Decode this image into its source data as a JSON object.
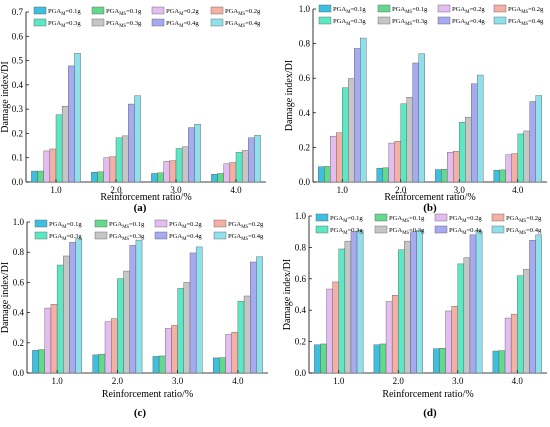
{
  "series_styles": [
    {
      "name": "PGA_M=0.1g",
      "base": "PGA",
      "sub": "M",
      "val": "=0.1g",
      "color": "#3dbfe0"
    },
    {
      "name": "PGA_MS=0.1g",
      "base": "PGA",
      "sub": "MS",
      "val": "=0.1g",
      "color": "#63d98e"
    },
    {
      "name": "PGA_M=0.2g",
      "base": "PGA",
      "sub": "M",
      "val": "=0.2g",
      "color": "#e4bcf0"
    },
    {
      "name": "PGA_MS=0.2g",
      "base": "PGA",
      "sub": "MS",
      "val": "=0.2g",
      "color": "#f4b0a4"
    },
    {
      "name": "PGA_M=0.3g",
      "base": "PGA",
      "sub": "M",
      "val": "=0.3g",
      "color": "#5de8c4"
    },
    {
      "name": "PGA_MS=0.3g",
      "base": "PGA",
      "sub": "MS",
      "val": "=0.3g",
      "color": "#c6c6c6"
    },
    {
      "name": "PGA_M=0.4g",
      "base": "PGA",
      "sub": "M",
      "val": "=0.4g",
      "color": "#a6aaf0"
    },
    {
      "name": "PGA_MS=0.4g",
      "base": "PGA",
      "sub": "MS",
      "val": "=0.4g",
      "color": "#8fe0ea"
    }
  ],
  "chart_data": [
    {
      "type": "bar",
      "panel_label": "(a)",
      "xlabel": "Reinforcement ratio/%",
      "ylabel": "Damage index/DI",
      "categories": [
        "1.0",
        "2.0",
        "3.0",
        "4.0"
      ],
      "ylim": [
        0,
        0.7
      ],
      "yticks": [
        "0.0",
        "0.1",
        "0.2",
        "0.3",
        "0.4",
        "0.5",
        "0.6",
        "0.7"
      ],
      "series": [
        {
          "name": "PGA_M=0.1g",
          "values": [
            0.045,
            0.04,
            0.035,
            0.032
          ]
        },
        {
          "name": "PGA_MS=0.1g",
          "values": [
            0.045,
            0.042,
            0.038,
            0.035
          ]
        },
        {
          "name": "PGA_M=0.2g",
          "values": [
            0.128,
            0.1,
            0.085,
            0.075
          ]
        },
        {
          "name": "PGA_MS=0.2g",
          "values": [
            0.136,
            0.104,
            0.088,
            0.08
          ]
        },
        {
          "name": "PGA_M=0.3g",
          "values": [
            0.277,
            0.182,
            0.138,
            0.122
          ]
        },
        {
          "name": "PGA_MS=0.3g",
          "values": [
            0.312,
            0.19,
            0.145,
            0.13
          ]
        },
        {
          "name": "PGA_M=0.4g",
          "values": [
            0.478,
            0.321,
            0.224,
            0.182
          ]
        },
        {
          "name": "PGA_MS=0.4g",
          "values": [
            0.53,
            0.355,
            0.238,
            0.192
          ]
        }
      ]
    },
    {
      "type": "bar",
      "panel_label": "(b)",
      "xlabel": "Reinforcement ratio/%",
      "ylabel": "Damage index/DI",
      "categories": [
        "1.0",
        "2.0",
        "3.0",
        "4.0"
      ],
      "ylim": [
        0,
        1.0
      ],
      "yticks": [
        "0.0",
        "0.2",
        "0.4",
        "0.6",
        "0.8",
        "1.0"
      ],
      "series": [
        {
          "name": "PGA_M=0.1g",
          "values": [
            0.088,
            0.08,
            0.072,
            0.068
          ]
        },
        {
          "name": "PGA_MS=0.1g",
          "values": [
            0.09,
            0.082,
            0.074,
            0.07
          ]
        },
        {
          "name": "PGA_M=0.2g",
          "values": [
            0.265,
            0.225,
            0.172,
            0.158
          ]
        },
        {
          "name": "PGA_MS=0.2g",
          "values": [
            0.285,
            0.235,
            0.178,
            0.164
          ]
        },
        {
          "name": "PGA_M=0.3g",
          "values": [
            0.545,
            0.452,
            0.345,
            0.278
          ]
        },
        {
          "name": "PGA_MS=0.3g",
          "values": [
            0.598,
            0.49,
            0.375,
            0.295
          ]
        },
        {
          "name": "PGA_M=0.4g",
          "values": [
            0.772,
            0.688,
            0.568,
            0.465
          ]
        },
        {
          "name": "PGA_MS=0.4g",
          "values": [
            0.832,
            0.742,
            0.618,
            0.5
          ]
        }
      ]
    },
    {
      "type": "bar",
      "panel_label": "(c)",
      "xlabel": "Reinforcement ratio/%",
      "ylabel": "Damage index/DI",
      "categories": [
        "1.0",
        "2.0",
        "3.0",
        "4.0"
      ],
      "ylim": [
        0,
        1.0
      ],
      "yticks": [
        "0.0",
        "0.2",
        "0.4",
        "0.6",
        "0.8",
        "1.0"
      ],
      "series": [
        {
          "name": "PGA_M=0.1g",
          "values": [
            0.15,
            0.12,
            0.11,
            0.1
          ]
        },
        {
          "name": "PGA_MS=0.1g",
          "values": [
            0.155,
            0.125,
            0.113,
            0.102
          ]
        },
        {
          "name": "PGA_M=0.2g",
          "values": [
            0.43,
            0.34,
            0.295,
            0.255
          ]
        },
        {
          "name": "PGA_MS=0.2g",
          "values": [
            0.455,
            0.36,
            0.315,
            0.27
          ]
        },
        {
          "name": "PGA_M=0.3g",
          "values": [
            0.715,
            0.625,
            0.56,
            0.475
          ]
        },
        {
          "name": "PGA_MS=0.3g",
          "values": [
            0.775,
            0.675,
            0.6,
            0.51
          ]
        },
        {
          "name": "PGA_M=0.4g",
          "values": [
            0.865,
            0.845,
            0.795,
            0.735
          ]
        },
        {
          "name": "PGA_MS=0.4g",
          "values": [
            0.89,
            0.88,
            0.835,
            0.77
          ]
        }
      ]
    },
    {
      "type": "bar",
      "panel_label": "(d)",
      "xlabel": "Reinforcement ratio/%",
      "ylabel": "Damage index/DI",
      "categories": [
        "1.0",
        "2.0",
        "3.0",
        "4.0"
      ],
      "ylim": [
        0,
        1.0
      ],
      "yticks": [
        "0.0",
        "0.2",
        "0.4",
        "0.6",
        "0.8",
        "1.0"
      ],
      "series": [
        {
          "name": "PGA_M=0.1g",
          "values": [
            0.18,
            0.18,
            0.155,
            0.14
          ]
        },
        {
          "name": "PGA_MS=0.1g",
          "values": [
            0.185,
            0.185,
            0.158,
            0.143
          ]
        },
        {
          "name": "PGA_M=0.2g",
          "values": [
            0.535,
            0.455,
            0.395,
            0.35
          ]
        },
        {
          "name": "PGA_MS=0.2g",
          "values": [
            0.58,
            0.495,
            0.425,
            0.375
          ]
        },
        {
          "name": "PGA_M=0.3g",
          "values": [
            0.79,
            0.785,
            0.695,
            0.62
          ]
        },
        {
          "name": "PGA_MS=0.3g",
          "values": [
            0.84,
            0.84,
            0.735,
            0.66
          ]
        },
        {
          "name": "PGA_M=0.4g",
          "values": [
            0.9,
            0.9,
            0.88,
            0.845
          ]
        },
        {
          "name": "PGA_MS=0.4g",
          "values": [
            0.91,
            0.91,
            0.905,
            0.88
          ]
        }
      ]
    }
  ]
}
